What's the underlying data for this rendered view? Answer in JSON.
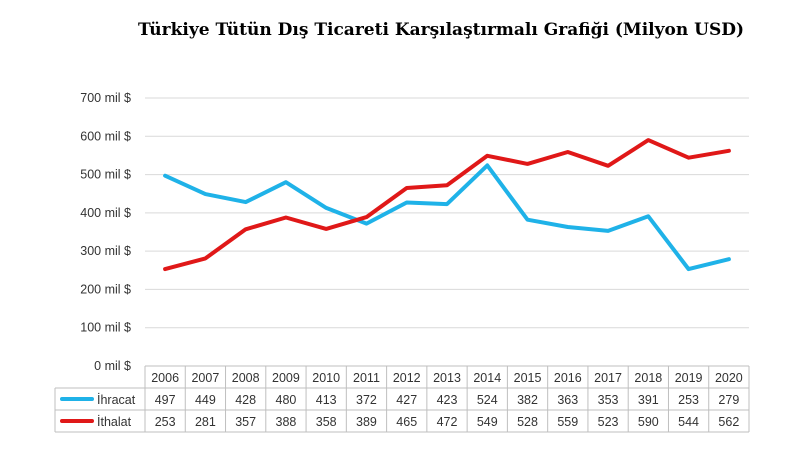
{
  "chart_data": {
    "type": "line",
    "title": "Türkiye Tütün Dış Ticareti Karşılaştırmalı Grafiği (Milyon USD)",
    "categories": [
      "2006",
      "2007",
      "2008",
      "2009",
      "2010",
      "2011",
      "2012",
      "2013",
      "2014",
      "2015",
      "2016",
      "2017",
      "2018",
      "2019",
      "2020"
    ],
    "y_tick_labels": [
      "0 mil $",
      "100 mil $",
      "200 mil $",
      "300 mil $",
      "400 mil $",
      "500 mil $",
      "600 mil $",
      "700 mil $"
    ],
    "ylim": [
      0,
      700
    ],
    "grid": true,
    "legend": "data-table",
    "series": [
      {
        "name": "İhracat",
        "color": "#1fb2e8",
        "values": [
          497,
          449,
          428,
          480,
          413,
          372,
          427,
          423,
          524,
          382,
          363,
          353,
          391,
          253,
          279
        ]
      },
      {
        "name": "İthalat",
        "color": "#e01818",
        "values": [
          253,
          281,
          357,
          388,
          358,
          389,
          465,
          472,
          549,
          528,
          559,
          523,
          590,
          544,
          562
        ]
      }
    ]
  }
}
